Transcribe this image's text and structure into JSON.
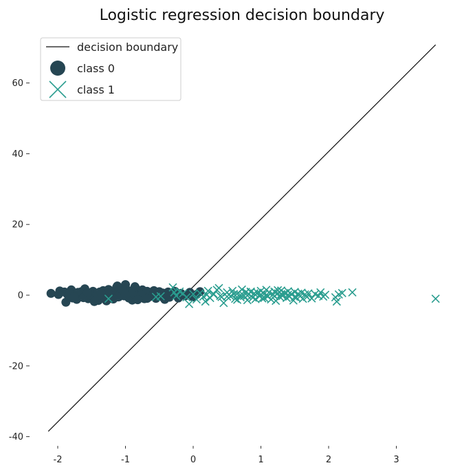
{
  "chart_data": {
    "type": "scatter",
    "title": "Logistic regression decision boundary",
    "xlabel": "",
    "ylabel": "",
    "xlim": [
      -2.4,
      3.75
    ],
    "ylim": [
      -43,
      74
    ],
    "x_ticks": [
      -2,
      -1,
      0,
      1,
      2,
      3
    ],
    "y_ticks": [
      -40,
      -20,
      0,
      20,
      40,
      60
    ],
    "x_tick_labels": [
      "-2",
      "-1",
      "0",
      "1",
      "2",
      "3"
    ],
    "y_tick_labels": [
      "-40",
      "-20",
      "0",
      "20",
      "40",
      "60"
    ],
    "grid": false,
    "legend_position": "upper-left",
    "legend": [
      "decision boundary",
      "class 0",
      "class 1"
    ],
    "boundary": {
      "name": "decision boundary",
      "x": [
        -2.14,
        3.58
      ],
      "y": [
        -38.5,
        70.8
      ],
      "color": "#111111"
    },
    "series": [
      {
        "name": "class 0",
        "marker": "circle",
        "color": "#264653",
        "x": [
          -2.1,
          -1.97,
          -1.88,
          -1.86,
          -1.83,
          -1.8,
          -1.78,
          -1.75,
          -1.72,
          -1.7,
          -1.68,
          -1.65,
          -1.62,
          -1.6,
          -1.58,
          -1.55,
          -1.53,
          -1.5,
          -1.48,
          -1.45,
          -1.43,
          -1.4,
          -1.38,
          -1.35,
          -1.33,
          -1.3,
          -1.28,
          -1.25,
          -1.23,
          -1.2,
          -1.18,
          -1.15,
          -1.13,
          -1.1,
          -1.08,
          -1.05,
          -1.02,
          -1.0,
          -0.98,
          -0.95,
          -0.93,
          -0.9,
          -0.88,
          -0.85,
          -0.83,
          -0.8,
          -0.78,
          -0.75,
          -0.72,
          -0.7,
          -0.68,
          -0.65,
          -0.62,
          -0.6,
          -0.58,
          -0.55,
          -0.52,
          -0.5,
          -0.47,
          -0.45,
          -0.42,
          -0.4,
          -0.37,
          -0.35,
          -0.3,
          -0.27,
          -0.22,
          -0.18,
          -0.12,
          -0.05,
          0.0,
          0.05,
          0.1,
          -1.5,
          -1.42,
          -1.32,
          -1.24,
          -1.15,
          -1.07,
          -0.97,
          -0.87,
          -0.77,
          -1.9,
          -1.62,
          -1.36,
          -1.12,
          -0.92,
          -0.68,
          -1.84,
          -1.56,
          -1.28,
          -1.04,
          -0.82,
          -1.99,
          -1.12,
          -1.76,
          -0.86,
          -1.46,
          -1.18,
          -1.0
        ],
        "y": [
          0.5,
          1.2,
          -2.0,
          0.3,
          -0.5,
          1.5,
          -0.8,
          0.2,
          -1.2,
          0.8,
          -0.3,
          1.0,
          -0.6,
          1.8,
          0.1,
          -1.0,
          0.6,
          -0.2,
          1.1,
          -0.7,
          0.4,
          -1.5,
          0.9,
          -0.1,
          1.3,
          -0.9,
          0.5,
          1.6,
          -0.4,
          0.2,
          -1.1,
          1.0,
          2.3,
          -0.5,
          0.7,
          1.9,
          -0.2,
          3.0,
          0.4,
          -0.8,
          1.2,
          -1.4,
          0.6,
          2.0,
          -0.6,
          0.9,
          -0.3,
          1.5,
          -1.0,
          0.3,
          1.1,
          -0.5,
          0.8,
          -0.2,
          1.3,
          -0.9,
          0.4,
          1.0,
          -0.4,
          0.6,
          -1.2,
          0.2,
          0.9,
          -0.6,
          0.3,
          1.1,
          -0.8,
          0.5,
          -0.2,
          0.8,
          -0.5,
          0.2,
          1.0,
          0.0,
          0.1,
          -0.3,
          0.2,
          -0.1,
          0.4,
          -0.2,
          0.3,
          0.0,
          0.9,
          -0.7,
          0.6,
          -0.5,
          0.8,
          -0.9,
          -0.2,
          0.7,
          -1.6,
          1.4,
          -1.3,
          0.2,
          2.6,
          -0.6,
          2.4,
          -1.8,
          -0.9,
          0.3
        ]
      },
      {
        "name": "class 1",
        "marker": "x",
        "color": "#2a9d8f",
        "x": [
          -1.25,
          -0.55,
          -0.48,
          -0.3,
          -0.28,
          -0.25,
          -0.2,
          -0.15,
          -0.1,
          -0.06,
          0.0,
          0.05,
          0.1,
          0.15,
          0.18,
          0.22,
          0.25,
          0.3,
          0.35,
          0.38,
          0.42,
          0.45,
          0.5,
          0.55,
          0.58,
          0.62,
          0.65,
          0.7,
          0.72,
          0.75,
          0.78,
          0.8,
          0.82,
          0.85,
          0.88,
          0.9,
          0.92,
          0.95,
          0.98,
          1.0,
          1.02,
          1.05,
          1.08,
          1.1,
          1.12,
          1.15,
          1.18,
          1.2,
          1.22,
          1.25,
          1.28,
          1.3,
          1.32,
          1.35,
          1.38,
          1.4,
          1.42,
          1.45,
          1.48,
          1.5,
          1.52,
          1.55,
          1.58,
          1.6,
          1.62,
          1.65,
          1.68,
          1.7,
          1.75,
          1.8,
          1.85,
          1.88,
          1.92,
          1.95,
          2.1,
          2.12,
          2.15,
          2.2,
          2.35,
          3.58,
          0.2,
          0.4,
          0.6,
          0.8,
          1.0,
          1.2,
          1.4,
          0.3,
          0.5,
          0.7,
          0.9,
          1.1,
          1.3,
          1.5,
          0.65,
          0.85,
          1.05,
          1.25
        ],
        "y": [
          -1.0,
          -0.5,
          -0.3,
          2.2,
          0.8,
          -0.2,
          1.0,
          0.5,
          -0.6,
          -2.5,
          0.3,
          -1.2,
          0.6,
          -0.4,
          -1.8,
          1.2,
          -0.8,
          0.2,
          1.5,
          2.0,
          -0.5,
          -2.2,
          0.8,
          -0.3,
          1.2,
          -1.0,
          0.4,
          -0.6,
          1.6,
          -0.2,
          0.9,
          -1.4,
          0.3,
          1.0,
          -0.7,
          0.5,
          -1.1,
          0.7,
          -0.3,
          1.2,
          -0.9,
          0.4,
          1.5,
          -0.4,
          0.8,
          -1.2,
          0.2,
          1.0,
          -1.6,
          0.5,
          -0.5,
          1.3,
          -0.2,
          0.6,
          -0.8,
          1.1,
          -0.4,
          0.3,
          -1.5,
          0.9,
          -0.6,
          0.4,
          -0.3,
          0.7,
          -1.0,
          0.2,
          -0.5,
          0.5,
          -0.9,
          0.3,
          -0.2,
          0.8,
          -0.4,
          0.1,
          -0.6,
          -1.8,
          0.2,
          0.6,
          0.8,
          -1.0,
          0.1,
          -0.2,
          0.3,
          -0.1,
          0.2,
          -0.3,
          0.1,
          0.4,
          -0.4,
          0.0,
          0.5,
          -0.2,
          0.3,
          -0.5,
          -1.3,
          0.9,
          -0.8,
          1.4
        ]
      }
    ]
  }
}
